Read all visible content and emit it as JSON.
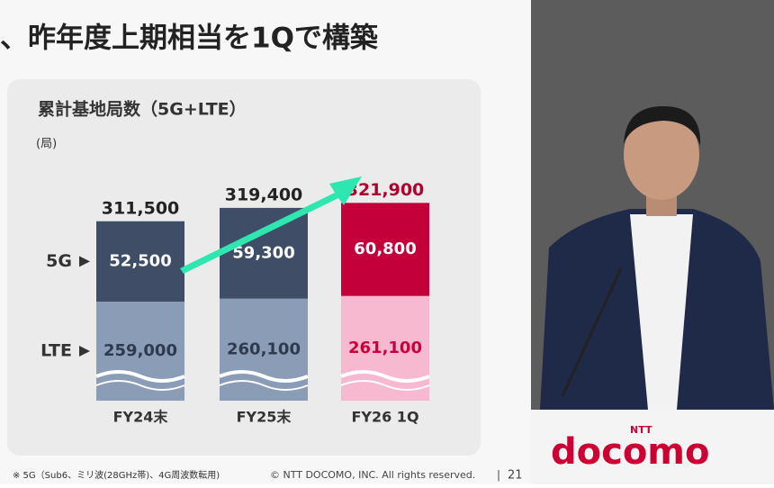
{
  "slide": {
    "title": "、昨年度上期相当を1Qで構築",
    "footnote": "※ 5G（Sub6、ミリ波(28GHz帯)、4G周波数転用)",
    "copyright": "© NTT DOCOMO, INC.  All rights reserved.",
    "page": "21"
  },
  "chart_data": {
    "type": "bar",
    "stacked": true,
    "title": "累計基地局数（5G+LTE）",
    "unit_label": "(局)",
    "categories": [
      "FY24末",
      "FY25末",
      "FY26 1Q"
    ],
    "series": [
      {
        "name": "LTE",
        "colors": [
          "#8b9cb7",
          "#8b9cb7",
          "#f7b9d0"
        ],
        "label_colors": [
          "#2e3a4d",
          "#2e3a4d",
          "#c8003c"
        ],
        "values": [
          259000,
          260100,
          261100
        ],
        "value_labels": [
          "259,000",
          "260,100",
          "261,100"
        ]
      },
      {
        "name": "5G",
        "colors": [
          "#3f4e66",
          "#3f4e66",
          "#c4003a"
        ],
        "label_colors": [
          "#ffffff",
          "#ffffff",
          "#ffffff"
        ],
        "values": [
          52500,
          59300,
          60800
        ],
        "value_labels": [
          "52,500",
          "59,300",
          "60,800"
        ]
      }
    ],
    "totals": [
      311500,
      319400,
      321900
    ],
    "total_labels": [
      "311,500",
      "319,400",
      "321,900"
    ],
    "total_colors": [
      "#222222",
      "#222222",
      "#b0002f"
    ]
  },
  "logo": {
    "brand": "NTT",
    "name": "docomo"
  }
}
